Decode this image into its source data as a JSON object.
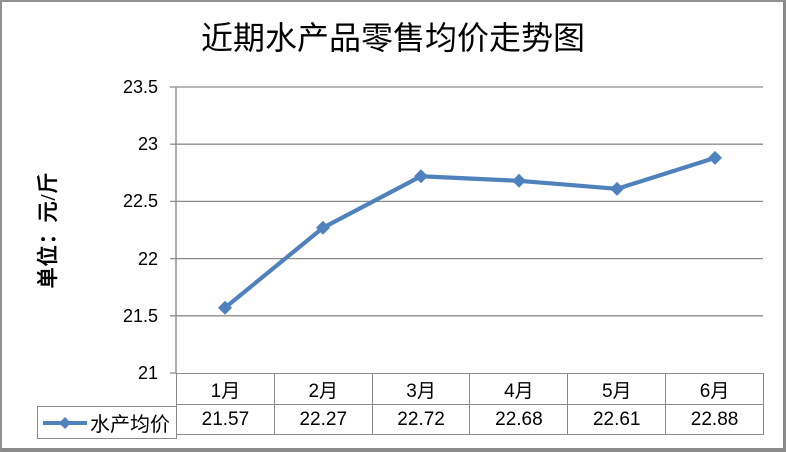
{
  "chart_data": {
    "type": "line",
    "title": "近期水产品零售均价走势图",
    "ylabel": "单位：元/斤",
    "categories": [
      "1月",
      "2月",
      "3月",
      "4月",
      "5月",
      "6月"
    ],
    "series": [
      {
        "name": "水产均价",
        "values": [
          21.57,
          22.27,
          22.72,
          22.68,
          22.61,
          22.88
        ],
        "values_display": [
          "21.57",
          "22.27",
          "22.72",
          "22.68",
          "22.61",
          "22.88"
        ],
        "color": "#4f81bd",
        "marker": "diamond"
      }
    ],
    "ylim": [
      21,
      23.5
    ],
    "ytick_step": 0.5,
    "ytick_labels": [
      "23.5",
      "23",
      "22.5",
      "22",
      "21.5",
      "21"
    ],
    "grid": "horizontal",
    "gridline_color": "#8c8c8c",
    "axis_color": "#8c8c8c",
    "table_border_color": "#8a8a8a",
    "frame_border_color": "#919191",
    "legend_position": "bottom-left-data-table-key",
    "data_table_shown": true
  }
}
